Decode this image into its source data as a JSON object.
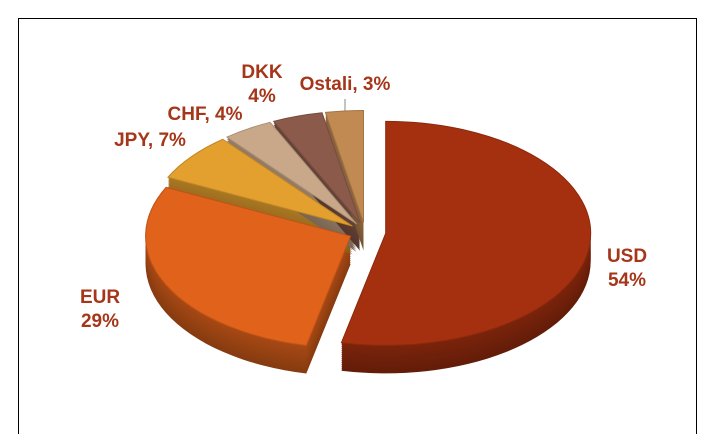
{
  "chart_data": {
    "type": "pie",
    "values": [
      54,
      29,
      7,
      4,
      4,
      3
    ],
    "value_labels": [
      "USD\n54%",
      "EUR\n29%",
      "JPY, 7%",
      "CHF, 4%",
      "DKK\n4%",
      "Ostali, 3%"
    ],
    "colors": [
      "#a5300f",
      "#e0621b",
      "#e3a02e",
      "#c9a88a",
      "#8b5a4b",
      "#c08a52"
    ]
  }
}
